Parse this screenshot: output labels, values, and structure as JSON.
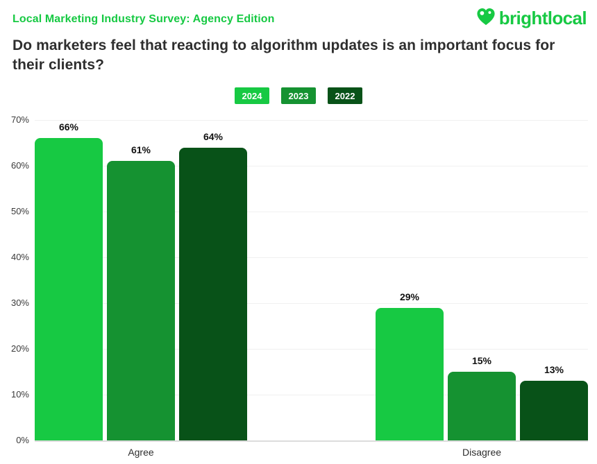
{
  "header": {
    "kicker": "Local Marketing Industry Survey: Agency Edition",
    "title": "Do marketers feel that reacting to algorithm updates is an important focus for their clients?"
  },
  "logo": {
    "wordmark": "brightlocal",
    "color": "#17C943"
  },
  "colors": {
    "brand_green": "#17C943",
    "grid": "#F0F0F0",
    "baseline": "#DCDCDC",
    "title_text": "#2E2E2E",
    "axis_text": "#3A3A3A",
    "value_text": "#111111"
  },
  "chart_data": {
    "type": "bar",
    "title": "Do marketers feel that reacting to algorithm updates is an important focus for their clients?",
    "categories": [
      "Agree",
      "Disagree"
    ],
    "series": [
      {
        "name": "2024",
        "color": "#17C943",
        "values": [
          66,
          29
        ]
      },
      {
        "name": "2023",
        "color": "#159231",
        "values": [
          61,
          15
        ]
      },
      {
        "name": "2022",
        "color": "#085218",
        "values": [
          64,
          13
        ]
      }
    ],
    "value_suffix": "%",
    "xlabel": "",
    "ylabel": "",
    "ylim": [
      0,
      70
    ],
    "ytick_values": [
      70,
      60,
      50,
      40,
      30,
      20,
      10,
      0
    ],
    "ytick_labels": [
      "70%",
      "60%",
      "50%",
      "40%",
      "30%",
      "20%",
      "10%",
      "0%"
    ],
    "grid": true,
    "legend_position": "top-center"
  }
}
